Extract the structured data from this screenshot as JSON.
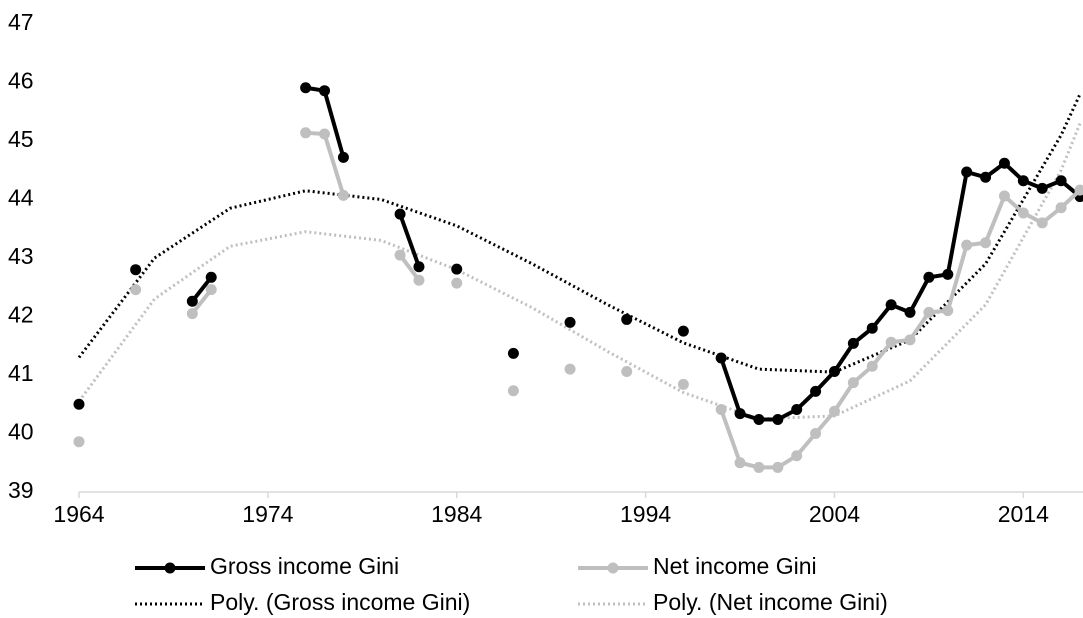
{
  "chart_data": {
    "type": "line",
    "x": [
      1964,
      1965,
      1966,
      1967,
      1968,
      1969,
      1970,
      1971,
      1972,
      1973,
      1974,
      1975,
      1976,
      1977,
      1978,
      1979,
      1980,
      1981,
      1982,
      1983,
      1984,
      1985,
      1986,
      1987,
      1988,
      1989,
      1990,
      1991,
      1992,
      1993,
      1994,
      1995,
      1996,
      1997,
      1998,
      1999,
      2000,
      2001,
      2002,
      2003,
      2004,
      2005,
      2006,
      2007,
      2008,
      2009,
      2010,
      2011,
      2012,
      2013,
      2014,
      2015,
      2016,
      2017
    ],
    "series": [
      {
        "name": "Gross income Gini",
        "color": "#000000",
        "style": "solid",
        "values": [
          40.5,
          null,
          null,
          42.8,
          null,
          null,
          42.26,
          42.67,
          null,
          null,
          null,
          null,
          45.91,
          45.86,
          44.72,
          null,
          null,
          43.75,
          42.85,
          null,
          42.81,
          null,
          null,
          41.37,
          null,
          null,
          41.9,
          null,
          null,
          41.95,
          null,
          null,
          41.75,
          null,
          41.29,
          40.34,
          40.24,
          40.24,
          40.41,
          40.72,
          41.06,
          41.54,
          41.8,
          42.2,
          42.07,
          42.67,
          42.72,
          44.47,
          44.38,
          44.62,
          44.32,
          44.19,
          44.32,
          44.05
        ]
      },
      {
        "name": "Net income Gini",
        "color": "#bfbfbf",
        "style": "solid",
        "values": [
          39.86,
          null,
          null,
          42.46,
          null,
          null,
          42.05,
          42.46,
          null,
          null,
          null,
          null,
          45.14,
          45.12,
          44.07,
          null,
          null,
          43.05,
          42.62,
          null,
          42.57,
          null,
          null,
          40.73,
          null,
          null,
          41.1,
          null,
          null,
          41.06,
          null,
          null,
          40.84,
          null,
          40.41,
          39.5,
          39.42,
          39.42,
          39.62,
          40.0,
          40.38,
          40.87,
          41.15,
          41.56,
          41.6,
          42.07,
          42.1,
          43.22,
          43.26,
          44.06,
          43.77,
          43.6,
          43.86,
          44.16
        ]
      },
      {
        "name": "Poly. (Gross income Gini)",
        "color": "#000000",
        "style": "dotted",
        "x": [
          1964,
          1968,
          1972,
          1976,
          1980,
          1984,
          1988,
          1992,
          1996,
          2000,
          2004,
          2008,
          2012,
          2016,
          2017
        ],
        "values": [
          41.3,
          43.0,
          43.85,
          44.15,
          44.0,
          43.55,
          42.9,
          42.2,
          41.55,
          41.1,
          41.05,
          41.6,
          42.9,
          45.1,
          45.8
        ]
      },
      {
        "name": "Poly. (Net income Gini)",
        "color": "#bfbfbf",
        "style": "dotted",
        "x": [
          1964,
          1968,
          1972,
          1976,
          1980,
          1984,
          1988,
          1992,
          1996,
          2000,
          2004,
          2008,
          2012,
          2016,
          2017
        ],
        "values": [
          40.55,
          42.3,
          43.2,
          43.45,
          43.3,
          42.8,
          42.15,
          41.4,
          40.7,
          40.25,
          40.3,
          40.9,
          42.2,
          44.5,
          45.3
        ]
      }
    ],
    "xlim": [
      1964,
      2017
    ],
    "xticks": [
      1964,
      1974,
      1984,
      1994,
      2004,
      2014
    ],
    "ylim": [
      39,
      47
    ],
    "yticks": [
      39,
      40,
      41,
      42,
      43,
      44,
      45,
      46,
      47
    ],
    "grid": false,
    "legend": "bottom"
  }
}
